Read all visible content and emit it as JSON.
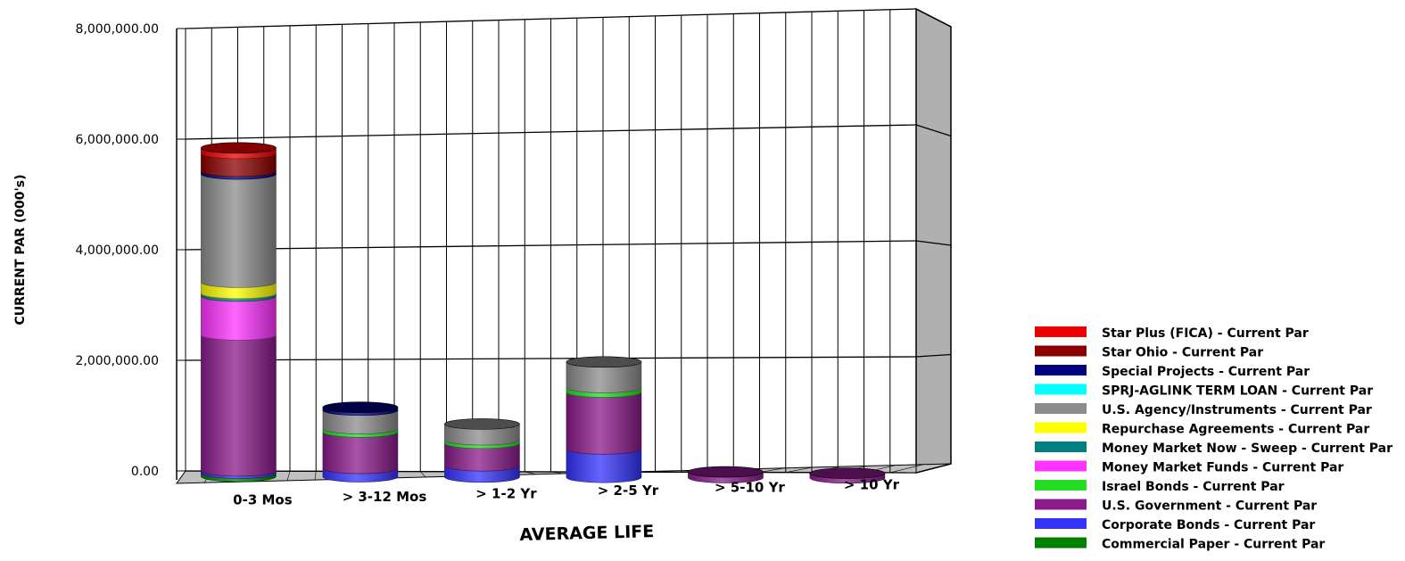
{
  "chart_data": {
    "type": "bar",
    "stacked": true,
    "style": "3d-cylinder",
    "xlabel": "AVERAGE LIFE",
    "ylabel": "CURRENT PAR (000's)",
    "ylim": [
      0,
      8000000
    ],
    "yticks": [
      "0.00",
      "2,000,000.00",
      "4,000,000.00",
      "6,000,000.00",
      "8,000,000.00"
    ],
    "grid": true,
    "legend_position": "bottom-right",
    "categories": [
      "0-3 Mos",
      "> 3-12 Mos",
      "> 1-2 Yr",
      "> 2-5 Yr",
      "> 5-10 Yr",
      "> 10 Yr"
    ],
    "series": [
      {
        "name": "Commercial Paper - Current Par",
        "color": "#008000",
        "values": [
          60000,
          0,
          0,
          0,
          0,
          0
        ]
      },
      {
        "name": "Corporate Bonds - Current Par",
        "color": "#3333ff",
        "values": [
          40000,
          150000,
          200000,
          500000,
          0,
          0
        ]
      },
      {
        "name": "U.S. Government - Current Par",
        "color": "#8b1a8b",
        "values": [
          2450000,
          650000,
          400000,
          1000000,
          100000,
          80000
        ]
      },
      {
        "name": "Israel Bonds - Current Par",
        "color": "#22dd22",
        "values": [
          0,
          60000,
          60000,
          80000,
          0,
          0
        ]
      },
      {
        "name": "Money Market Funds - Current Par",
        "color": "#ff33ff",
        "values": [
          700000,
          0,
          0,
          0,
          0,
          0
        ]
      },
      {
        "name": "Money Market Now - Sweep - Current Par",
        "color": "#008080",
        "values": [
          50000,
          0,
          0,
          0,
          0,
          0
        ]
      },
      {
        "name": "Repurchase Agreements - Current Par",
        "color": "#ffff00",
        "values": [
          200000,
          0,
          0,
          0,
          0,
          0
        ]
      },
      {
        "name": "U.S. Agency/Instruments - Current Par",
        "color": "#8c8c8c",
        "values": [
          1950000,
          330000,
          280000,
          450000,
          0,
          0
        ]
      },
      {
        "name": "SPRJ-AGLINK TERM LOAN - Current Par",
        "color": "#00ffff",
        "values": [
          0,
          0,
          0,
          0,
          0,
          0
        ]
      },
      {
        "name": "Special Projects - Current Par",
        "color": "#000080",
        "values": [
          50000,
          50000,
          0,
          0,
          0,
          0
        ]
      },
      {
        "name": "Star Ohio - Current Par",
        "color": "#8b0000",
        "values": [
          320000,
          0,
          0,
          0,
          0,
          0
        ]
      },
      {
        "name": "Star Plus (FICA) - Current Par",
        "color": "#ee0000",
        "values": [
          100000,
          0,
          0,
          0,
          0,
          0
        ]
      }
    ]
  }
}
